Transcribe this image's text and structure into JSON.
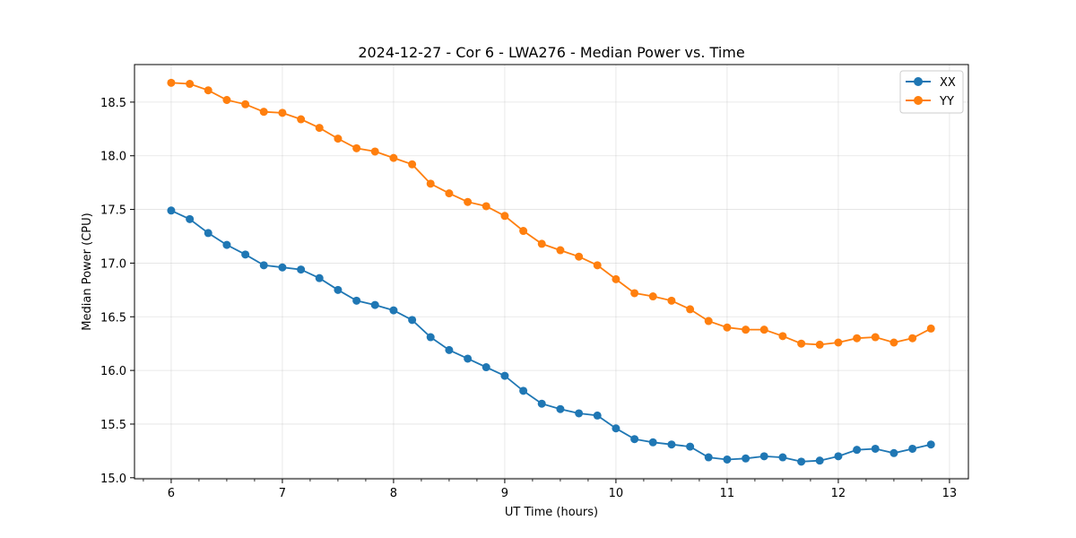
{
  "chart_data": {
    "type": "line",
    "title": "2024-12-27 - Cor 6 - LWA276 - Median Power vs. Time",
    "xlabel": "UT Time (hours)",
    "ylabel": "Median Power (CPU)",
    "xlim": [
      5.67,
      13.17
    ],
    "ylim": [
      14.99,
      18.85
    ],
    "xticks": [
      6,
      7,
      8,
      9,
      10,
      11,
      12,
      13
    ],
    "xtick_labels": [
      "6",
      "7",
      "8",
      "9",
      "10",
      "11",
      "12",
      "13"
    ],
    "xtick_minor": [
      5.75,
      6.25,
      6.5,
      6.75,
      7.25,
      7.5,
      7.75,
      8.25,
      8.5,
      8.75,
      9.25,
      9.5,
      9.75,
      10.25,
      10.5,
      10.75,
      11.25,
      11.5,
      11.75,
      12.25,
      12.5,
      12.75,
      13.25
    ],
    "yticks": [
      15.0,
      15.5,
      16.0,
      16.5,
      17.0,
      17.5,
      18.0,
      18.5
    ],
    "ytick_labels": [
      "15.0",
      "15.5",
      "16.0",
      "16.5",
      "17.0",
      "17.5",
      "18.0",
      "18.5"
    ],
    "grid": true,
    "legend_position": "top-right",
    "x": [
      6.0,
      6.167,
      6.333,
      6.5,
      6.667,
      6.833,
      7.0,
      7.167,
      7.333,
      7.5,
      7.667,
      7.833,
      8.0,
      8.167,
      8.333,
      8.5,
      8.667,
      8.833,
      9.0,
      9.167,
      9.333,
      9.5,
      9.667,
      9.833,
      10.0,
      10.167,
      10.333,
      10.5,
      10.667,
      10.833,
      11.0,
      11.167,
      11.333,
      11.5,
      11.667,
      11.833,
      12.0,
      12.167,
      12.333,
      12.5,
      12.667,
      12.833
    ],
    "series": [
      {
        "name": "XX",
        "color": "#1f77b4",
        "values": [
          17.49,
          17.41,
          17.28,
          17.17,
          17.08,
          16.98,
          16.96,
          16.94,
          16.86,
          16.75,
          16.65,
          16.61,
          16.56,
          16.47,
          16.31,
          16.19,
          16.11,
          16.03,
          15.95,
          15.81,
          15.69,
          15.64,
          15.6,
          15.58,
          15.46,
          15.36,
          15.33,
          15.31,
          15.29,
          15.19,
          15.17,
          15.18,
          15.2,
          15.19,
          15.15,
          15.16,
          15.2,
          15.26,
          15.27,
          15.23,
          15.27,
          15.31
        ]
      },
      {
        "name": "YY",
        "color": "#ff7f0e",
        "values": [
          18.68,
          18.67,
          18.61,
          18.52,
          18.48,
          18.41,
          18.4,
          18.34,
          18.26,
          18.16,
          18.07,
          18.04,
          17.98,
          17.92,
          17.74,
          17.65,
          17.57,
          17.53,
          17.44,
          17.3,
          17.18,
          17.12,
          17.06,
          16.98,
          16.85,
          16.72,
          16.69,
          16.65,
          16.57,
          16.46,
          16.4,
          16.38,
          16.38,
          16.32,
          16.25,
          16.24,
          16.26,
          16.3,
          16.31,
          16.26,
          16.3,
          16.39
        ]
      }
    ]
  }
}
